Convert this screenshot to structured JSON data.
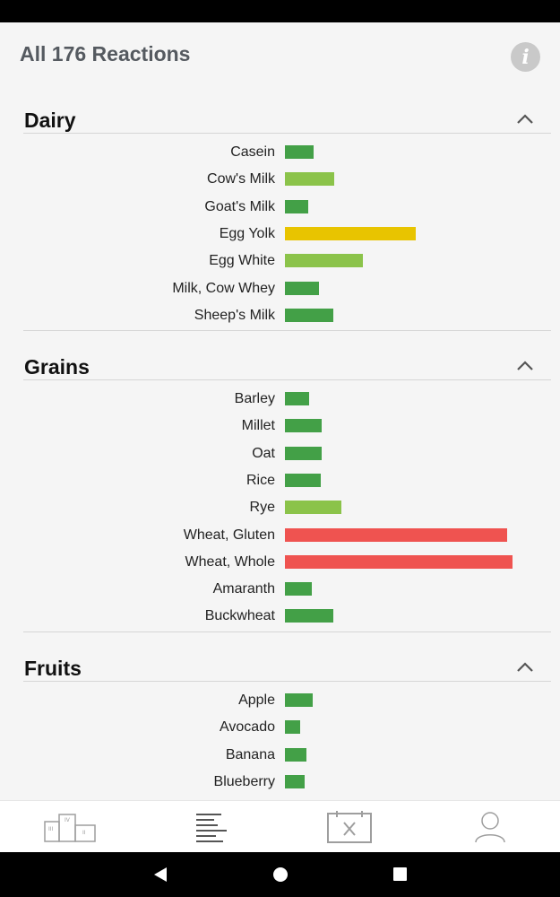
{
  "header": {
    "title": "All 176 Reactions",
    "info_icon": "info-icon"
  },
  "colors": {
    "dark_green": "#43a047",
    "light_green": "#8bc34a",
    "yellow": "#e8c400",
    "red": "#ef5350"
  },
  "sections": [
    {
      "title": "Dairy",
      "items": [
        {
          "label": "Casein",
          "value": 32,
          "level": "dark_green"
        },
        {
          "label": "Cow's Milk",
          "value": 55,
          "level": "light_green"
        },
        {
          "label": "Goat's Milk",
          "value": 26,
          "level": "dark_green"
        },
        {
          "label": "Egg Yolk",
          "value": 146,
          "level": "yellow"
        },
        {
          "label": "Egg White",
          "value": 87,
          "level": "light_green"
        },
        {
          "label": "Milk, Cow Whey",
          "value": 38,
          "level": "dark_green"
        },
        {
          "label": "Sheep's Milk",
          "value": 54,
          "level": "dark_green"
        }
      ]
    },
    {
      "title": "Grains",
      "items": [
        {
          "label": "Barley",
          "value": 27,
          "level": "dark_green"
        },
        {
          "label": "Millet",
          "value": 41,
          "level": "dark_green"
        },
        {
          "label": "Oat",
          "value": 41,
          "level": "dark_green"
        },
        {
          "label": "Rice",
          "value": 40,
          "level": "dark_green"
        },
        {
          "label": "Rye",
          "value": 63,
          "level": "light_green"
        },
        {
          "label": "Wheat, Gluten",
          "value": 248,
          "level": "red"
        },
        {
          "label": "Wheat, Whole",
          "value": 254,
          "level": "red"
        },
        {
          "label": "Amaranth",
          "value": 30,
          "level": "dark_green"
        },
        {
          "label": "Buckwheat",
          "value": 54,
          "level": "dark_green"
        }
      ]
    },
    {
      "title": "Fruits",
      "items": [
        {
          "label": "Apple",
          "value": 31,
          "level": "dark_green"
        },
        {
          "label": "Avocado",
          "value": 17,
          "level": "dark_green"
        },
        {
          "label": "Banana",
          "value": 24,
          "level": "dark_green"
        },
        {
          "label": "Blueberry",
          "value": 22,
          "level": "dark_green"
        }
      ]
    }
  ],
  "bottom_nav": [
    {
      "name": "podium-icon"
    },
    {
      "name": "list-icon"
    },
    {
      "name": "calendar-meal-icon"
    },
    {
      "name": "profile-icon"
    }
  ],
  "system_nav": [
    {
      "name": "back-icon"
    },
    {
      "name": "home-icon"
    },
    {
      "name": "recents-icon"
    }
  ]
}
